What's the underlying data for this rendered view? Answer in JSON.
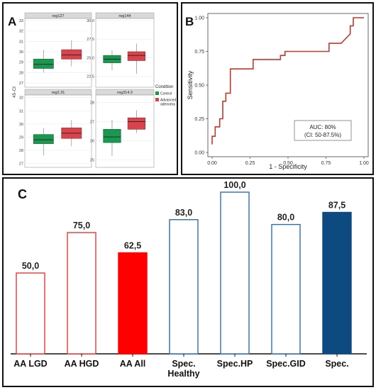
{
  "panels": {
    "a": {
      "letter": "A"
    },
    "b": {
      "letter": "B"
    },
    "c": {
      "letter": "C"
    }
  },
  "chart_data": [
    {
      "type": "boxplot",
      "panel": "A",
      "ylabel": "45-Ct",
      "legend": {
        "title": "Condition",
        "placement": "right",
        "entries": [
          {
            "label": "Control",
            "color": "#1a9850"
          },
          {
            "label": "Advanced adenoma",
            "color": "#d9434b"
          }
        ]
      },
      "groups": [
        "Control",
        "Advanced adenoma"
      ],
      "facets": [
        {
          "title": "reg127",
          "ylim": [
            26.6,
            33.2
          ],
          "yticks": [
            27,
            28,
            29,
            30,
            31,
            32,
            33
          ],
          "boxes": [
            {
              "group": "Control",
              "min": 28.0,
              "q1": 28.4,
              "median": 28.8,
              "q3": 29.3,
              "max": 30.2
            },
            {
              "group": "Advanced adenoma",
              "min": 28.6,
              "q1": 29.3,
              "median": 29.7,
              "q3": 30.2,
              "max": 31.1
            }
          ]
        },
        {
          "title": "reg144",
          "ylim": [
            21.0,
            30.3
          ],
          "yticks": [
            22.5,
            25.0,
            27.5,
            30.0
          ],
          "ytick_labels": [
            "22.5",
            "25.0",
            "27.5",
            "30.0"
          ],
          "boxes": [
            {
              "group": "Control",
              "min": 23.3,
              "q1": 24.3,
              "median": 24.8,
              "q3": 25.3,
              "max": 26.0
            },
            {
              "group": "Advanced adenoma",
              "min": 22.8,
              "q1": 24.6,
              "median": 25.3,
              "q3": 25.8,
              "max": 26.9
            }
          ]
        },
        {
          "title": "reg2.31",
          "ylim": [
            26.7,
            32.2
          ],
          "yticks": [
            27,
            28,
            29,
            30,
            31,
            32
          ],
          "boxes": [
            {
              "group": "Control",
              "min": 27.6,
              "q1": 28.5,
              "median": 28.8,
              "q3": 29.2,
              "max": 29.7
            },
            {
              "group": "Advanced adenoma",
              "min": 28.3,
              "q1": 28.9,
              "median": 29.3,
              "q3": 29.7,
              "max": 30.3
            }
          ]
        },
        {
          "title": "reg314.3",
          "ylim": [
            24.6,
            28.4
          ],
          "yticks": [
            25,
            26,
            27,
            28
          ],
          "boxes": [
            {
              "group": "Control",
              "min": 25.2,
              "q1": 25.9,
              "median": 26.2,
              "q3": 26.6,
              "max": 27.1
            },
            {
              "group": "Advanced adenoma",
              "min": 26.4,
              "q1": 26.6,
              "median": 27.0,
              "q3": 27.2,
              "max": 27.6
            }
          ]
        }
      ]
    },
    {
      "type": "line",
      "panel": "B",
      "xlabel": "1 - Specificity",
      "ylabel": "Sensitivity",
      "xlim": [
        0,
        1
      ],
      "ylim": [
        0,
        1
      ],
      "xticks": [
        0,
        0.25,
        0.5,
        0.75,
        1
      ],
      "xtick_labels": [
        "0.00",
        "0.25",
        "0.50",
        "0.75",
        "1.00"
      ],
      "yticks": [
        0,
        0.25,
        0.5,
        0.75,
        1
      ],
      "ytick_labels": [
        "0.00",
        "0.25",
        "0.50",
        "0.75",
        "1.00"
      ],
      "annotation": [
        "AUC: 80%",
        "(CI: 50-87.5%)"
      ],
      "series": [
        {
          "color": "#c0392b",
          "x": [
            0.0,
            0.0,
            0.02,
            0.02,
            0.05,
            0.05,
            0.07,
            0.07,
            0.09,
            0.09,
            0.12,
            0.12,
            0.27,
            0.27,
            0.45,
            0.45,
            0.48,
            0.48,
            0.77,
            0.77,
            0.85,
            0.85,
            0.91,
            0.91,
            0.93,
            0.93,
            1.0
          ],
          "y": [
            0.06,
            0.12,
            0.12,
            0.19,
            0.19,
            0.25,
            0.25,
            0.38,
            0.38,
            0.44,
            0.44,
            0.62,
            0.62,
            0.69,
            0.69,
            0.72,
            0.72,
            0.75,
            0.75,
            0.81,
            0.81,
            0.81,
            0.88,
            0.94,
            0.94,
            1.0,
            1.0
          ]
        }
      ]
    },
    {
      "type": "bar",
      "panel": "C",
      "categories": [
        "AA LGD",
        "AA HGD",
        "AA All",
        "Spec.\nHealthy",
        "Spec.HP",
        "Spec.GID",
        "Spec."
      ],
      "category_labels": [
        [
          "AA LGD"
        ],
        [
          "AA HGD"
        ],
        [
          "AA All"
        ],
        [
          "Spec.",
          "Healthy"
        ],
        [
          "Spec.HP"
        ],
        [
          "Spec.GID"
        ],
        [
          "Spec."
        ]
      ],
      "values": [
        50.0,
        75.0,
        62.5,
        83.0,
        100.0,
        80.0,
        87.5
      ],
      "value_labels": [
        "50,0",
        "75,0",
        "62,5",
        "83,0",
        "100,0",
        "80,0",
        "87,5"
      ],
      "ylim": [
        0,
        100
      ],
      "styles": [
        {
          "fill": "#ffffff",
          "stroke": "#e53935"
        },
        {
          "fill": "#ffffff",
          "stroke": "#e53935"
        },
        {
          "fill": "#ff0000",
          "stroke": "#ff0000"
        },
        {
          "fill": "#ffffff",
          "stroke": "#2d6fa8"
        },
        {
          "fill": "#ffffff",
          "stroke": "#2d6fa8"
        },
        {
          "fill": "#ffffff",
          "stroke": "#2d6fa8"
        },
        {
          "fill": "#0d4a80",
          "stroke": "#0d4a80"
        }
      ]
    }
  ]
}
